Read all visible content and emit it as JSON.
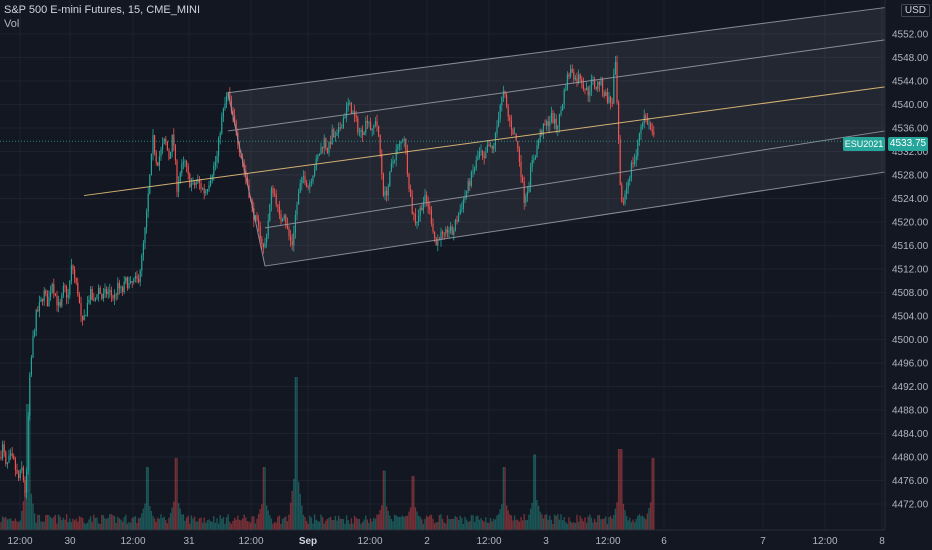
{
  "legend": {
    "title": "S&P 500 E-mini Futures, 15, CME_MINI",
    "volume_label": "Vol"
  },
  "currency": "USD",
  "symbol_badge": "ESU2021",
  "price_badge": "4533.75",
  "colors": {
    "background": "#131722",
    "up": "#26a69a",
    "down": "#ef5350",
    "channel_line": "#9598a1",
    "median_line": "#e6c07b",
    "grid": "#1e2230"
  },
  "chart_data": {
    "type": "candlestick",
    "title": "S&P 500 E-mini Futures, 15, CME_MINI",
    "ylim": [
      4468,
      4556
    ],
    "y_ticks": [
      4552,
      4548,
      4544,
      4540,
      4536,
      4532,
      4528,
      4524,
      4520,
      4516,
      4512,
      4508,
      4504,
      4500,
      4496,
      4492,
      4488,
      4484,
      4480,
      4476,
      4472
    ],
    "x_ticks": [
      {
        "label": "12:00",
        "bold": false
      },
      {
        "label": "30",
        "bold": false
      },
      {
        "label": "12:00",
        "bold": false
      },
      {
        "label": "31",
        "bold": false
      },
      {
        "label": "12:00",
        "bold": false
      },
      {
        "label": "Sep",
        "bold": true
      },
      {
        "label": "12:00",
        "bold": false
      },
      {
        "label": "2",
        "bold": false
      },
      {
        "label": "12:00",
        "bold": false
      },
      {
        "label": "3",
        "bold": false
      },
      {
        "label": "12:00",
        "bold": false
      },
      {
        "label": "6",
        "bold": false
      },
      {
        "label": "7",
        "bold": false
      },
      {
        "label": "12:00",
        "bold": false
      },
      {
        "label": "8",
        "bold": false
      }
    ],
    "last_price": 4533.75,
    "price_path": [
      [
        0,
        4480
      ],
      [
        3,
        4482
      ],
      [
        6,
        4478
      ],
      [
        10,
        4480
      ],
      [
        14,
        4479
      ],
      [
        18,
        4476
      ],
      [
        22,
        4478
      ],
      [
        26,
        4473
      ],
      [
        28,
        4486
      ],
      [
        30,
        4494
      ],
      [
        33,
        4500
      ],
      [
        36,
        4504
      ],
      [
        40,
        4506
      ],
      [
        44,
        4508
      ],
      [
        48,
        4506
      ],
      [
        52,
        4510
      ],
      [
        56,
        4507
      ],
      [
        60,
        4505
      ],
      [
        64,
        4509
      ],
      [
        68,
        4507
      ],
      [
        72,
        4513
      ],
      [
        75,
        4510
      ],
      [
        78,
        4508
      ],
      [
        82,
        4502
      ],
      [
        86,
        4505
      ],
      [
        90,
        4508
      ],
      [
        94,
        4506
      ],
      [
        98,
        4509
      ],
      [
        102,
        4507
      ],
      [
        106,
        4508
      ],
      [
        110,
        4508
      ],
      [
        114,
        4507
      ],
      [
        118,
        4509
      ],
      [
        122,
        4508
      ],
      [
        126,
        4510
      ],
      [
        130,
        4509
      ],
      [
        134,
        4510
      ],
      [
        138,
        4510
      ],
      [
        142,
        4514
      ],
      [
        146,
        4520
      ],
      [
        150,
        4528
      ],
      [
        153,
        4534
      ],
      [
        157,
        4530
      ],
      [
        161,
        4532
      ],
      [
        165,
        4534
      ],
      [
        169,
        4531
      ],
      [
        173,
        4535
      ],
      [
        177,
        4526
      ],
      [
        181,
        4529
      ],
      [
        185,
        4530
      ],
      [
        189,
        4527
      ],
      [
        193,
        4526
      ],
      [
        197,
        4527
      ],
      [
        201,
        4526
      ],
      [
        205,
        4525
      ],
      [
        209,
        4527
      ],
      [
        213,
        4529
      ],
      [
        217,
        4531
      ],
      [
        221,
        4537
      ],
      [
        225,
        4540
      ],
      [
        228,
        4542
      ],
      [
        232,
        4538
      ],
      [
        236,
        4536
      ],
      [
        240,
        4532
      ],
      [
        244,
        4529
      ],
      [
        248,
        4526
      ],
      [
        252,
        4522
      ],
      [
        256,
        4520
      ],
      [
        260,
        4518
      ],
      [
        264,
        4515
      ],
      [
        268,
        4520
      ],
      [
        272,
        4526
      ],
      [
        276,
        4524
      ],
      [
        280,
        4520
      ],
      [
        284,
        4522
      ],
      [
        288,
        4518
      ],
      [
        292,
        4516
      ],
      [
        296,
        4522
      ],
      [
        300,
        4526
      ],
      [
        304,
        4528
      ],
      [
        308,
        4526
      ],
      [
        312,
        4528
      ],
      [
        316,
        4530
      ],
      [
        320,
        4532
      ],
      [
        324,
        4534
      ],
      [
        328,
        4532
      ],
      [
        332,
        4535
      ],
      [
        336,
        4534
      ],
      [
        340,
        4536
      ],
      [
        344,
        4538
      ],
      [
        348,
        4540
      ],
      [
        352,
        4539
      ],
      [
        356,
        4537
      ],
      [
        360,
        4535
      ],
      [
        364,
        4536
      ],
      [
        368,
        4538
      ],
      [
        372,
        4535
      ],
      [
        376,
        4538
      ],
      [
        380,
        4532
      ],
      [
        384,
        4524
      ],
      [
        388,
        4526
      ],
      [
        392,
        4530
      ],
      [
        396,
        4532
      ],
      [
        400,
        4533
      ],
      [
        404,
        4535
      ],
      [
        408,
        4528
      ],
      [
        412,
        4522
      ],
      [
        416,
        4520
      ],
      [
        420,
        4522
      ],
      [
        424,
        4524
      ],
      [
        428,
        4523
      ],
      [
        432,
        4520
      ],
      [
        436,
        4516
      ],
      [
        440,
        4518
      ],
      [
        444,
        4517
      ],
      [
        448,
        4519
      ],
      [
        452,
        4518
      ],
      [
        456,
        4520
      ],
      [
        460,
        4522
      ],
      [
        464,
        4524
      ],
      [
        468,
        4526
      ],
      [
        472,
        4528
      ],
      [
        476,
        4530
      ],
      [
        480,
        4532
      ],
      [
        484,
        4530
      ],
      [
        488,
        4533
      ],
      [
        492,
        4532
      ],
      [
        496,
        4535
      ],
      [
        500,
        4540
      ],
      [
        504,
        4542
      ],
      [
        508,
        4538
      ],
      [
        512,
        4536
      ],
      [
        516,
        4534
      ],
      [
        520,
        4530
      ],
      [
        524,
        4524
      ],
      [
        528,
        4526
      ],
      [
        532,
        4530
      ],
      [
        536,
        4532
      ],
      [
        540,
        4535
      ],
      [
        544,
        4536
      ],
      [
        548,
        4537
      ],
      [
        552,
        4538
      ],
      [
        556,
        4536
      ],
      [
        560,
        4538
      ],
      [
        564,
        4542
      ],
      [
        568,
        4545
      ],
      [
        572,
        4546
      ],
      [
        576,
        4544
      ],
      [
        580,
        4545
      ],
      [
        584,
        4543
      ],
      [
        588,
        4542
      ],
      [
        592,
        4544
      ],
      [
        596,
        4543
      ],
      [
        600,
        4544
      ],
      [
        604,
        4542
      ],
      [
        608,
        4541
      ],
      [
        612,
        4540
      ],
      [
        615,
        4548
      ],
      [
        618,
        4536
      ],
      [
        621,
        4522
      ],
      [
        624,
        4524
      ],
      [
        628,
        4527
      ],
      [
        632,
        4530
      ],
      [
        636,
        4531
      ],
      [
        640,
        4536
      ],
      [
        644,
        4538
      ],
      [
        648,
        4537
      ],
      [
        652,
        4535
      ],
      [
        655,
        4533.75
      ]
    ],
    "volume_spikes": [
      [
        28,
        0.7
      ],
      [
        147,
        0.35
      ],
      [
        176,
        0.4
      ],
      [
        264,
        0.35
      ],
      [
        296,
        0.85
      ],
      [
        384,
        0.33
      ],
      [
        413,
        0.3
      ],
      [
        504,
        0.35
      ],
      [
        535,
        0.42
      ],
      [
        620,
        0.45
      ],
      [
        653,
        0.4
      ]
    ],
    "channel": {
      "upper": [
        [
          228,
          4542
        ],
        [
          885,
          4556.5
        ]
      ],
      "inner_upper": [
        [
          228,
          4535.5
        ],
        [
          885,
          4551
        ]
      ],
      "median": [
        [
          84,
          4524.5
        ],
        [
          885,
          4543
        ]
      ],
      "inner_lower": [
        [
          265,
          4519
        ],
        [
          885,
          4535.5
        ]
      ],
      "lower": [
        [
          265,
          4512.5
        ],
        [
          885,
          4528.5
        ]
      ],
      "left_edge": [
        [
          228,
          4542
        ],
        [
          265,
          4512.5
        ]
      ]
    }
  }
}
